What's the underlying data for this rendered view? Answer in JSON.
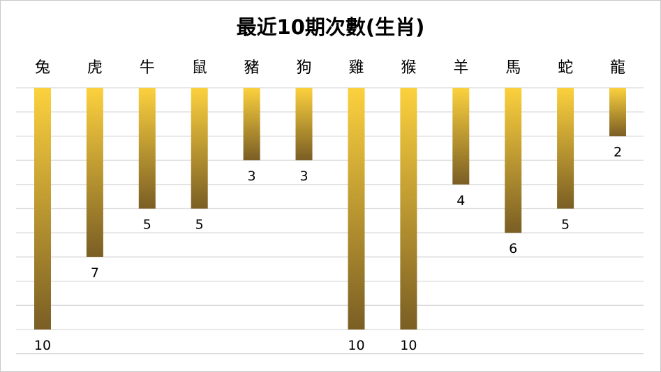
{
  "chart_data": {
    "type": "bar",
    "title": "最近10期次數(生肖)",
    "categories": [
      "兔",
      "虎",
      "牛",
      "鼠",
      "豬",
      "狗",
      "雞",
      "猴",
      "羊",
      "馬",
      "蛇",
      "龍"
    ],
    "values": [
      10,
      7,
      5,
      5,
      3,
      3,
      10,
      10,
      4,
      6,
      5,
      2
    ],
    "ylim": [
      0,
      11
    ],
    "orientation": "downward",
    "category_axis_position": "top",
    "grid": true,
    "legend": "none",
    "bar_gradient": [
      "#fcd13e",
      "#7a5e24"
    ],
    "gridline_color": "#d9d9d9"
  }
}
